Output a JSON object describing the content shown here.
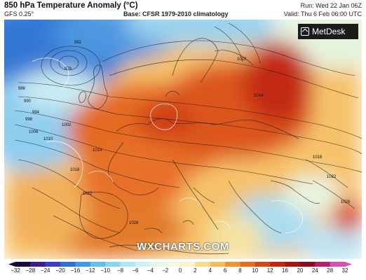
{
  "header": {
    "title": "850 hPa Temperature Anomaly (°C)",
    "model": "GFS 0.25°",
    "base": "Base: CFSR 1979-2010 climatology",
    "run": "Run: Wed 22 Jan 06Z",
    "valid": "Valid: Thu 6 Feb 06:00 UTC"
  },
  "watermark": "WXCHARTS.COM",
  "logo": {
    "text": "MetDesk",
    "icon": "metdesk-logo-icon"
  },
  "isobar_labels": [
    "982",
    "978",
    "986",
    "990",
    "994",
    "998",
    "1002",
    "1006",
    "1010",
    "1014",
    "1018",
    "1022",
    "1026",
    "1010",
    "1014",
    "1018",
    "1022",
    "1026"
  ],
  "scale": {
    "ticks": [
      -32,
      -28,
      -24,
      -20,
      -16,
      -12,
      -10,
      -8,
      -6,
      -4,
      -2,
      0,
      2,
      4,
      6,
      8,
      10,
      12,
      16,
      20,
      24,
      28,
      32
    ],
    "colors": [
      "#1a0a3a",
      "#3a1f8a",
      "#3b3fc6",
      "#2f6fd8",
      "#3c9ae6",
      "#5fc0ee",
      "#86d6f0",
      "#aee6f4",
      "#d0f1f2",
      "#e6f7ec",
      "#f4f9e6",
      "#fbf3c9",
      "#f9dd8c",
      "#f6bc59",
      "#f09432",
      "#e86a1f",
      "#d94414",
      "#c5250f",
      "#a9140f",
      "#8c0b1a",
      "#b81f6a",
      "#d850b0"
    ]
  },
  "colors": {
    "cold": "#3a7fd8",
    "cool": "#9fd4ef",
    "neutral": "#f4f7dc",
    "warm": "#f2a448",
    "hot": "#df5a1c",
    "very_hot": "#c12810"
  }
}
